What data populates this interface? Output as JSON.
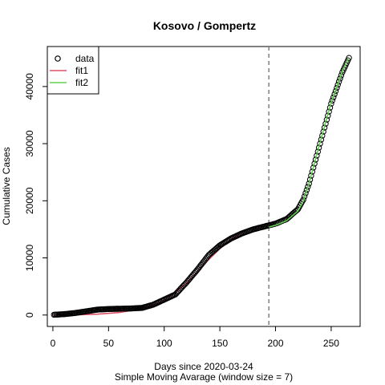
{
  "chart_data": {
    "type": "line",
    "title": "Kosovo / Gompertz",
    "xlabel": "Days since 2020-03-24",
    "xlabel2": "Simple Moving Avarage (window size = 7)",
    "ylabel": "Cumulative Cases",
    "xlim": [
      -5,
      276
    ],
    "ylim": [
      -2000,
      47000
    ],
    "x_ticks": [
      0,
      50,
      100,
      150,
      200,
      250
    ],
    "y_ticks": [
      0,
      10000,
      20000,
      30000,
      40000
    ],
    "vline": {
      "x": 194,
      "style": "dashed",
      "color": "#7f7f7f"
    },
    "legend": {
      "position": "top-left",
      "entries": [
        "data",
        "fit1",
        "fit2"
      ]
    },
    "colors": {
      "data": "#000000",
      "fit1": "#df536b",
      "fit2": "#61d04f"
    },
    "series": [
      {
        "name": "data",
        "kind": "points",
        "x": [
          1,
          10,
          20,
          30,
          40,
          50,
          60,
          70,
          80,
          90,
          100,
          110,
          120,
          130,
          140,
          150,
          160,
          170,
          180,
          190,
          194,
          200,
          210,
          220,
          225,
          230,
          240,
          250,
          260,
          266
        ],
        "y": [
          50,
          150,
          350,
          650,
          950,
          1050,
          1100,
          1150,
          1250,
          1800,
          2700,
          3600,
          5700,
          8000,
          10500,
          12200,
          13400,
          14300,
          15000,
          15500,
          15700,
          16000,
          16800,
          18500,
          20200,
          23000,
          30000,
          37000,
          42500,
          45000
        ]
      },
      {
        "name": "fit1",
        "kind": "line",
        "x": [
          1,
          20,
          40,
          60,
          80,
          90,
          100,
          110,
          120,
          130,
          140,
          150,
          160,
          170,
          180,
          194
        ],
        "y": [
          0,
          20,
          150,
          450,
          1100,
          1700,
          2600,
          3900,
          5600,
          7600,
          9700,
          11600,
          13200,
          14500,
          15300,
          16000
        ]
      },
      {
        "name": "fit2",
        "kind": "line",
        "x": [
          194,
          200,
          210,
          220,
          225,
          230,
          240,
          250,
          260,
          266
        ],
        "y": [
          15400,
          15700,
          16500,
          18200,
          20000,
          23000,
          30200,
          37200,
          42700,
          45000
        ]
      }
    ]
  }
}
